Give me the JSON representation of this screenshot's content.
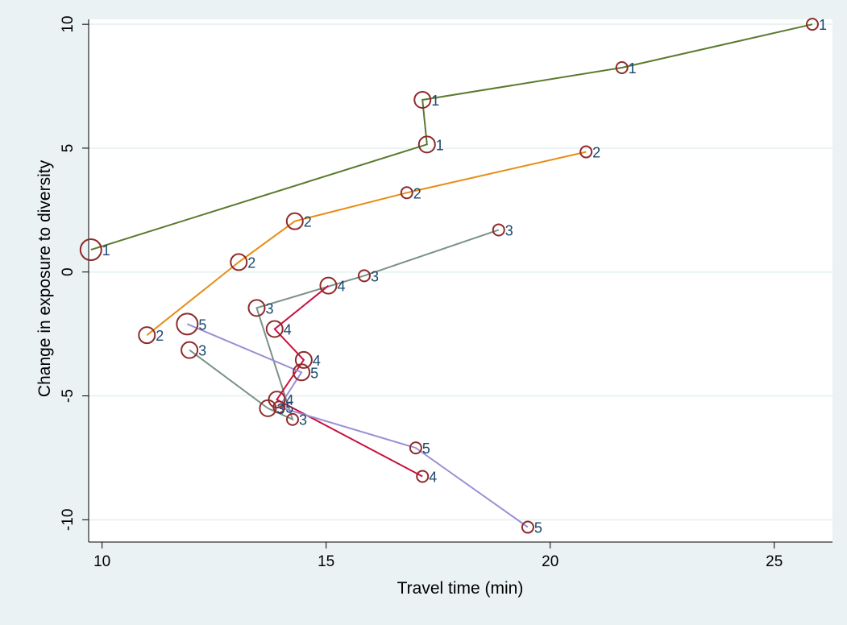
{
  "chart_data": {
    "type": "scatter",
    "xlabel": "Travel time (min)",
    "ylabel": "Change in exposure to diversity",
    "xlim": [
      9.7,
      26.3
    ],
    "ylim": [
      -10.9,
      10.2
    ],
    "xticks": [
      10,
      15,
      20,
      25
    ],
    "yticks": [
      10,
      5,
      0,
      -5,
      -10
    ],
    "xtick_labels": [
      "10",
      "15",
      "20",
      "25"
    ],
    "ytick_labels": [
      "10",
      "5",
      "0",
      "-5",
      "-10"
    ],
    "grid": "horizontal",
    "colors": {
      "background": "#eaf2f3",
      "plot_background": "#ffffff",
      "gridline": "#eaf2f3",
      "marker_edge": "#8f2a2a",
      "point_label": "#1a476f"
    },
    "series": [
      {
        "color": "#5b7a2f",
        "points": [
          {
            "x": 9.75,
            "y": 0.9,
            "size": 3,
            "label": "1"
          },
          {
            "x": 17.25,
            "y": 5.15,
            "size": 2,
            "label": "1"
          },
          {
            "x": 17.15,
            "y": 6.95,
            "size": 2,
            "label": "1"
          },
          {
            "x": 21.6,
            "y": 8.25,
            "size": 1,
            "label": "1"
          },
          {
            "x": 25.85,
            "y": 10.0,
            "size": 1,
            "label": "1"
          }
        ]
      },
      {
        "color": "#e88c16",
        "points": [
          {
            "x": 11.0,
            "y": -2.55,
            "size": 2,
            "label": "2"
          },
          {
            "x": 13.05,
            "y": 0.4,
            "size": 2,
            "label": "2"
          },
          {
            "x": 14.3,
            "y": 2.05,
            "size": 2,
            "label": "2"
          },
          {
            "x": 16.8,
            "y": 3.2,
            "size": 1,
            "label": "2"
          },
          {
            "x": 20.8,
            "y": 4.85,
            "size": 1,
            "label": "2"
          }
        ]
      },
      {
        "color": "#7b9187",
        "points": [
          {
            "x": 11.95,
            "y": -3.15,
            "size": 2,
            "label": "3"
          },
          {
            "x": 13.7,
            "y": -5.5,
            "size": 2,
            "label": "3"
          },
          {
            "x": 14.25,
            "y": -5.95,
            "size": 1,
            "label": "3"
          },
          {
            "x": 13.45,
            "y": -1.45,
            "size": 2,
            "label": "3"
          },
          {
            "x": 15.85,
            "y": -0.15,
            "size": 1,
            "label": "3"
          },
          {
            "x": 18.85,
            "y": 1.7,
            "size": 1,
            "label": "3"
          }
        ]
      },
      {
        "color": "#c8103e",
        "points": [
          {
            "x": 15.05,
            "y": -0.55,
            "size": 2,
            "label": "4"
          },
          {
            "x": 13.85,
            "y": -2.3,
            "size": 2,
            "label": "4"
          },
          {
            "x": 14.5,
            "y": -3.55,
            "size": 2,
            "label": "4"
          },
          {
            "x": 13.9,
            "y": -5.15,
            "size": 2,
            "label": "4"
          },
          {
            "x": 17.15,
            "y": -8.25,
            "size": 1,
            "label": "4"
          }
        ]
      },
      {
        "color": "#9c8fd4",
        "points": [
          {
            "x": 11.9,
            "y": -2.1,
            "size": 3,
            "label": "5"
          },
          {
            "x": 14.45,
            "y": -4.05,
            "size": 2,
            "label": "5"
          },
          {
            "x": 13.95,
            "y": -5.45,
            "size": 1,
            "label": "5"
          },
          {
            "x": 17.0,
            "y": -7.1,
            "size": 1,
            "label": "5"
          },
          {
            "x": 19.5,
            "y": -10.3,
            "size": 1,
            "label": "5"
          }
        ]
      }
    ]
  }
}
